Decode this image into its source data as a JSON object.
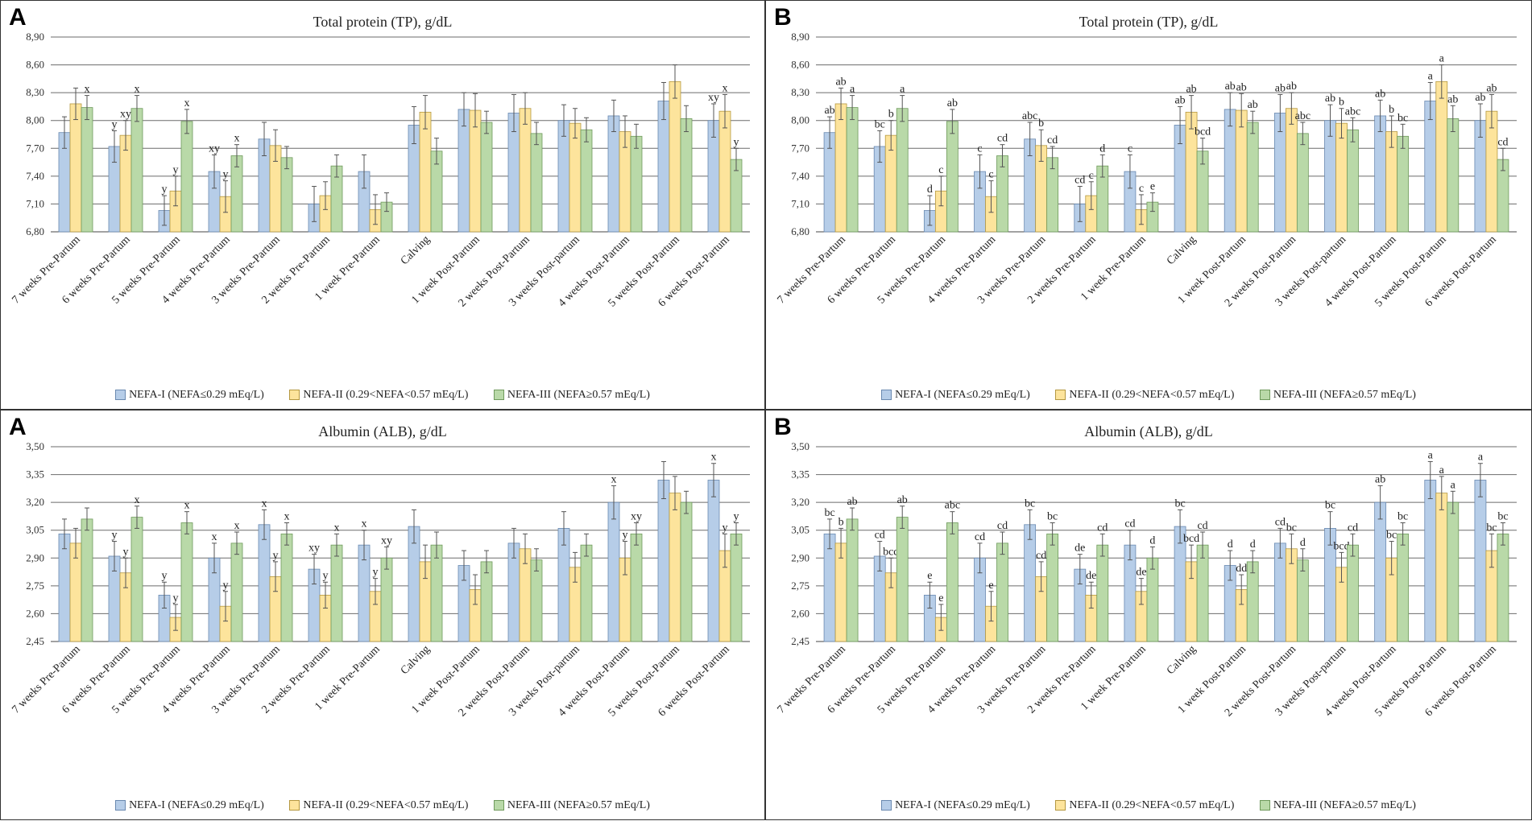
{
  "categories": [
    "7 weeks Pre-Partum",
    "6 weeks Pre-Partum",
    "5 weeks Pre-Partum",
    "4 weeks Pre-Partum",
    "3 weeks Pre-Partum",
    "2 weeks Pre-Partum",
    "1 week Pre-Partum",
    "Calving",
    "1 week Post-Partum",
    "2 weeks Post-Partum",
    "3 weeks Post-partum",
    "4 weeks Post-Partum",
    "5 weeks Post-Partum",
    "6 weeks Post-Partum"
  ],
  "legend": [
    {
      "label": "NEFA-I (NEFA≤0.29 mEq/L)",
      "color": "#b6cde8",
      "stroke": "#6a89b0"
    },
    {
      "label": "NEFA-II (0.29<NEFA<0.57 mEq/L)",
      "color": "#fde49c",
      "stroke": "#b59840"
    },
    {
      "label": "NEFA-III (NEFA≥0.57 mEq/L)",
      "color": "#b9d9a8",
      "stroke": "#6f9a5c"
    }
  ],
  "panels": [
    {
      "letter": "A",
      "title": "Total protein (TP), g/dL"
    },
    {
      "letter": "B",
      "title": "Total protein (TP), g/dL"
    },
    {
      "letter": "A",
      "title": "Albumin (ALB), g/dL"
    },
    {
      "letter": "B",
      "title": "Albumin (ALB), g/dL"
    }
  ],
  "chart_data": [
    {
      "type": "bar",
      "title": "Total protein (TP), g/dL",
      "panel": "A",
      "ylim": [
        6.8,
        8.9
      ],
      "yticks": [
        "6,80",
        "7,10",
        "7,40",
        "7,70",
        "8,00",
        "8,30",
        "8,60",
        "8,90"
      ],
      "series": [
        {
          "name": "NEFA-I (NEFA≤0.29 mEq/L)",
          "values": [
            7.87,
            7.72,
            7.03,
            7.45,
            7.8,
            7.1,
            7.45,
            7.95,
            8.12,
            8.08,
            8.0,
            8.05,
            8.21,
            8.0
          ],
          "errors": [
            0.17,
            0.17,
            0.16,
            0.18,
            0.18,
            0.19,
            0.18,
            0.2,
            0.18,
            0.2,
            0.17,
            0.17,
            0.2,
            0.18
          ],
          "labels": [
            "",
            "y",
            "y",
            "xy",
            "",
            "",
            "",
            "",
            "",
            "",
            "",
            "",
            "",
            "xy"
          ]
        },
        {
          "name": "NEFA-II (0.29<NEFA<0.57 mEq/L)",
          "values": [
            8.18,
            7.84,
            7.24,
            7.18,
            7.73,
            7.19,
            7.04,
            8.09,
            8.11,
            8.13,
            7.97,
            7.88,
            8.42,
            8.1
          ],
          "errors": [
            0.17,
            0.16,
            0.16,
            0.17,
            0.17,
            0.15,
            0.16,
            0.18,
            0.18,
            0.17,
            0.16,
            0.17,
            0.18,
            0.18
          ],
          "labels": [
            "",
            "xy",
            "y",
            "y",
            "",
            "",
            "",
            "",
            "",
            "",
            "",
            "",
            "",
            "x"
          ]
        },
        {
          "name": "NEFA-III (NEFA≥0.57 mEq/L)",
          "values": [
            8.14,
            8.13,
            7.99,
            7.62,
            7.6,
            7.51,
            7.12,
            7.67,
            7.98,
            7.86,
            7.9,
            7.83,
            8.02,
            7.58
          ],
          "errors": [
            0.13,
            0.14,
            0.13,
            0.12,
            0.12,
            0.12,
            0.1,
            0.14,
            0.12,
            0.12,
            0.13,
            0.13,
            0.14,
            0.12
          ],
          "labels": [
            "x",
            "x",
            "x",
            "x",
            "",
            "",
            "",
            "",
            "",
            "",
            "",
            "",
            "",
            "y"
          ]
        }
      ]
    },
    {
      "type": "bar",
      "title": "Total protein (TP), g/dL",
      "panel": "B",
      "ylim": [
        6.8,
        8.9
      ],
      "yticks": [
        "6,80",
        "7,10",
        "7,40",
        "7,70",
        "8,00",
        "8,30",
        "8,60",
        "8,90"
      ],
      "series": [
        {
          "name": "NEFA-I (NEFA≤0.29 mEq/L)",
          "values": [
            7.87,
            7.72,
            7.03,
            7.45,
            7.8,
            7.1,
            7.45,
            7.95,
            8.12,
            8.08,
            8.0,
            8.05,
            8.21,
            8.0
          ],
          "errors": [
            0.17,
            0.17,
            0.16,
            0.18,
            0.18,
            0.19,
            0.18,
            0.2,
            0.18,
            0.2,
            0.17,
            0.17,
            0.2,
            0.18
          ],
          "labels": [
            "ab",
            "bc",
            "d",
            "c",
            "abc",
            "cd",
            "c",
            "ab",
            "ab",
            "ab",
            "ab",
            "ab",
            "a",
            "ab"
          ]
        },
        {
          "name": "NEFA-II (0.29<NEFA<0.57 mEq/L)",
          "values": [
            8.18,
            7.84,
            7.24,
            7.18,
            7.73,
            7.19,
            7.04,
            8.09,
            8.11,
            8.13,
            7.97,
            7.88,
            8.42,
            8.1
          ],
          "errors": [
            0.17,
            0.16,
            0.16,
            0.17,
            0.17,
            0.15,
            0.16,
            0.18,
            0.18,
            0.17,
            0.16,
            0.17,
            0.18,
            0.18
          ],
          "labels": [
            "ab",
            "b",
            "c",
            "c",
            "b",
            "c",
            "c",
            "ab",
            "ab",
            "ab",
            "b",
            "b",
            "a",
            "ab"
          ]
        },
        {
          "name": "NEFA-III (NEFA≥0.57 mEq/L)",
          "values": [
            8.14,
            8.13,
            7.99,
            7.62,
            7.6,
            7.51,
            7.12,
            7.67,
            7.98,
            7.86,
            7.9,
            7.83,
            8.02,
            7.58
          ],
          "errors": [
            0.13,
            0.14,
            0.13,
            0.12,
            0.12,
            0.12,
            0.1,
            0.14,
            0.12,
            0.12,
            0.13,
            0.13,
            0.14,
            0.12
          ],
          "labels": [
            "a",
            "a",
            "ab",
            "cd",
            "cd",
            "d",
            "e",
            "bcd",
            "ab",
            "abc",
            "abc",
            "bc",
            "ab",
            "cd"
          ]
        }
      ]
    },
    {
      "type": "bar",
      "title": "Albumin (ALB), g/dL",
      "panel": "A",
      "ylim": [
        2.45,
        3.5
      ],
      "yticks": [
        "2,45",
        "2,60",
        "2,75",
        "2,90",
        "3,05",
        "3,20",
        "3,35",
        "3,50"
      ],
      "series": [
        {
          "name": "NEFA-I (NEFA≤0.29 mEq/L)",
          "values": [
            3.03,
            2.91,
            2.7,
            2.9,
            3.08,
            2.84,
            2.97,
            3.07,
            2.86,
            2.98,
            3.06,
            3.2,
            3.32,
            3.32
          ],
          "errors": [
            0.08,
            0.08,
            0.07,
            0.08,
            0.08,
            0.08,
            0.08,
            0.09,
            0.08,
            0.08,
            0.09,
            0.09,
            0.1,
            0.09
          ],
          "labels": [
            "",
            "y",
            "y",
            "x",
            "x",
            "xy",
            "x",
            "",
            "",
            "",
            "",
            "x",
            "",
            "x"
          ]
        },
        {
          "name": "NEFA-II (0.29<NEFA<0.57 mEq/L)",
          "values": [
            2.98,
            2.82,
            2.58,
            2.64,
            2.8,
            2.7,
            2.72,
            2.88,
            2.73,
            2.95,
            2.85,
            2.9,
            3.25,
            2.94
          ],
          "errors": [
            0.08,
            0.08,
            0.07,
            0.08,
            0.08,
            0.07,
            0.07,
            0.09,
            0.08,
            0.08,
            0.08,
            0.09,
            0.09,
            0.09
          ],
          "labels": [
            "",
            "y",
            "y",
            "y",
            "y",
            "y",
            "y",
            "",
            "",
            "",
            "",
            "y",
            "",
            "y"
          ]
        },
        {
          "name": "NEFA-III (NEFA≥0.57 mEq/L)",
          "values": [
            3.11,
            3.12,
            3.09,
            2.98,
            3.03,
            2.97,
            2.9,
            2.97,
            2.88,
            2.89,
            2.97,
            3.03,
            3.2,
            3.03
          ],
          "errors": [
            0.06,
            0.06,
            0.06,
            0.06,
            0.06,
            0.06,
            0.06,
            0.07,
            0.06,
            0.06,
            0.06,
            0.06,
            0.06,
            0.06
          ],
          "labels": [
            "",
            "x",
            "x",
            "x",
            "x",
            "x",
            "xy",
            "",
            "",
            "",
            "",
            "xy",
            "",
            "y"
          ]
        }
      ]
    },
    {
      "type": "bar",
      "title": "Albumin (ALB), g/dL",
      "panel": "B",
      "ylim": [
        2.45,
        3.5
      ],
      "yticks": [
        "2,45",
        "2,60",
        "2,75",
        "2,90",
        "3,05",
        "3,20",
        "3,35",
        "3,50"
      ],
      "series": [
        {
          "name": "NEFA-I (NEFA≤0.29 mEq/L)",
          "values": [
            3.03,
            2.91,
            2.7,
            2.9,
            3.08,
            2.84,
            2.97,
            3.07,
            2.86,
            2.98,
            3.06,
            3.2,
            3.32,
            3.32
          ],
          "errors": [
            0.08,
            0.08,
            0.07,
            0.08,
            0.08,
            0.08,
            0.08,
            0.09,
            0.08,
            0.08,
            0.09,
            0.09,
            0.1,
            0.09
          ],
          "labels": [
            "bc",
            "cd",
            "e",
            "cd",
            "bc",
            "de",
            "cd",
            "bc",
            "d",
            "cd",
            "bc",
            "ab",
            "a",
            "a"
          ]
        },
        {
          "name": "NEFA-II (0.29<NEFA<0.57 mEq/L)",
          "values": [
            2.98,
            2.82,
            2.58,
            2.64,
            2.8,
            2.7,
            2.72,
            2.88,
            2.73,
            2.95,
            2.85,
            2.9,
            3.25,
            2.94
          ],
          "errors": [
            0.08,
            0.08,
            0.07,
            0.08,
            0.08,
            0.07,
            0.07,
            0.09,
            0.08,
            0.08,
            0.08,
            0.09,
            0.09,
            0.09
          ],
          "labels": [
            "b",
            "bcd",
            "e",
            "e",
            "cd",
            "de",
            "de",
            "bcd",
            "dd",
            "bc",
            "bcd",
            "bc",
            "a",
            "bc"
          ]
        },
        {
          "name": "NEFA-III (NEFA≥0.57 mEq/L)",
          "values": [
            3.11,
            3.12,
            3.09,
            2.98,
            3.03,
            2.97,
            2.9,
            2.97,
            2.88,
            2.89,
            2.97,
            3.03,
            3.2,
            3.03
          ],
          "errors": [
            0.06,
            0.06,
            0.06,
            0.06,
            0.06,
            0.06,
            0.06,
            0.07,
            0.06,
            0.06,
            0.06,
            0.06,
            0.06,
            0.06
          ],
          "labels": [
            "ab",
            "ab",
            "abc",
            "cd",
            "bc",
            "cd",
            "d",
            "cd",
            "d",
            "d",
            "cd",
            "bc",
            "a",
            "bc"
          ]
        }
      ]
    }
  ]
}
